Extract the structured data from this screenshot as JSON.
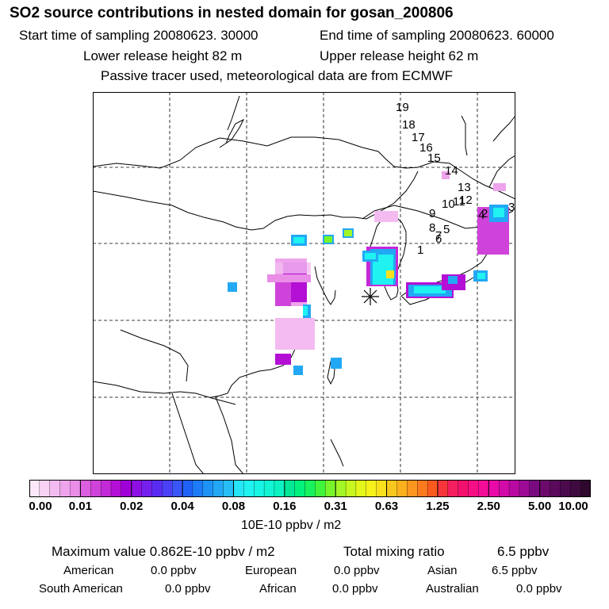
{
  "header": {
    "title": "SO2 source contributions in nested domain for gosan_200806",
    "start_time": "Start time of sampling 20080623. 30000",
    "end_time": "End time of sampling 20080623. 60000",
    "lower_height": "Lower release height   82 m",
    "upper_height": "Upper release height   62 m",
    "tracer_note": "Passive tracer used, meteorological data are from ECMWF"
  },
  "trajectory_labels": [
    "19",
    "18",
    "17",
    "16",
    "15",
    "14",
    "13",
    "12",
    "11",
    "10",
    "9",
    "8",
    "7",
    "6",
    "5",
    "4",
    "3",
    "2",
    "1"
  ],
  "colorbar": {
    "ticks": [
      "0.00",
      "0.01",
      "0.02",
      "0.04",
      "0.08",
      "0.16",
      "0.31",
      "0.63",
      "1.25",
      "2.50",
      "5.00",
      "10.00"
    ],
    "colors": [
      [
        "#fde8fb",
        "#f9d2f6",
        "#f4bbf1",
        "#eea4ec",
        "#e98de7"
      ],
      [
        "#db5fde",
        "#d043da",
        "#c32ad7",
        "#b30fd5",
        "#a000d8"
      ],
      [
        "#8c10e4",
        "#7520ec",
        "#5a2cf2",
        "#4a40f5",
        "#3a55f8"
      ],
      [
        "#1f62f8",
        "#1d7bf7",
        "#1f92f6",
        "#22a8f5",
        "#26bef4"
      ],
      [
        "#27e4f7",
        "#1ff2f1",
        "#18f5e4",
        "#12f4d4",
        "#0cf2c2"
      ],
      [
        "#00e896",
        "#00f27c",
        "#18f25e",
        "#40f53c",
        "#78f52a"
      ],
      [
        "#a4f726",
        "#c6f71f",
        "#e4f71a",
        "#f8f21a",
        "#f9e01c"
      ],
      [
        "#f9c81e",
        "#fbb01e",
        "#fc961e",
        "#fc7a1e",
        "#fa5a1e"
      ],
      [
        "#f6363a",
        "#f51e5e",
        "#f4106e",
        "#f50e84",
        "#f20c98"
      ],
      [
        "#e80aa8",
        "#d20aa8",
        "#b80aa2",
        "#9c0a96",
        "#7a0a80"
      ],
      [
        "#6c0a6c",
        "#5a0a5a",
        "#4a0a4c",
        "#3e0a40",
        "#30082e"
      ]
    ]
  },
  "units": "10E-10 ppbv / m2",
  "summary": {
    "max_label": "Maximum value  0.862E-10 ppbv / m2",
    "total_label": "Total mixing ratio",
    "total_value": "6.5 ppbv",
    "regions": [
      {
        "name": "American",
        "value": "0.0 ppbv"
      },
      {
        "name": "European",
        "value": "0.0 ppbv"
      },
      {
        "name": "Asian",
        "value": "6.5 ppbv"
      },
      {
        "name": "South American",
        "value": "0.0 ppbv"
      },
      {
        "name": "African",
        "value": "0.0 ppbv"
      },
      {
        "name": "Australian",
        "value": "0.0 ppbv"
      }
    ]
  }
}
